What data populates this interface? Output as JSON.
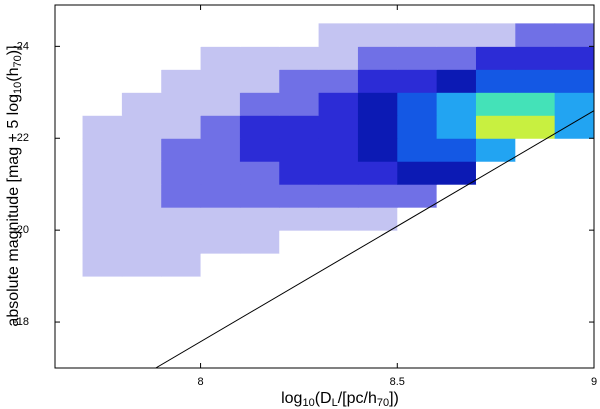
{
  "chart_data": {
    "type": "density",
    "x_label": [
      "log",
      "10",
      "(D",
      "L",
      "/[pc/h",
      "70",
      "])"
    ],
    "y_label": [
      "absolute magnitude [mag + 5 log",
      "10",
      "(h",
      "70",
      ")]"
    ],
    "xlim": [
      7.63,
      9.0
    ],
    "xticks": [
      8,
      8.5,
      9
    ],
    "ylim": [
      -17.0,
      -24.9
    ],
    "yticks": [
      -18,
      -20,
      -22,
      -24
    ],
    "x_bins": [
      7.7,
      7.8,
      7.9,
      8.0,
      8.1,
      8.2,
      8.3,
      8.4,
      8.5,
      8.6,
      8.7,
      8.8,
      8.9,
      9.0
    ],
    "y_bins": [
      -19.0,
      -19.5,
      -20.0,
      -20.5,
      -21.0,
      -21.5,
      -22.0,
      -22.5,
      -23.0,
      -23.5,
      -24.0,
      -24.5
    ],
    "counts": [
      [
        1,
        1,
        1,
        0,
        0,
        0,
        0,
        0,
        0,
        0,
        0,
        0,
        0
      ],
      [
        1,
        1,
        1,
        1,
        1,
        0,
        0,
        0,
        0,
        0,
        0,
        0,
        0
      ],
      [
        1,
        1,
        1,
        1,
        1,
        1,
        1,
        1,
        0,
        0,
        0,
        0,
        0
      ],
      [
        1,
        1,
        2,
        2,
        2,
        2,
        2,
        2,
        2,
        0,
        0,
        0,
        0
      ],
      [
        1,
        1,
        2,
        2,
        2,
        3,
        3,
        3,
        4,
        4,
        0,
        0,
        0
      ],
      [
        1,
        1,
        2,
        2,
        3,
        3,
        3,
        4,
        5,
        5,
        6,
        0,
        0
      ],
      [
        1,
        1,
        1,
        2,
        3,
        3,
        3,
        4,
        5,
        6,
        8,
        8,
        6
      ],
      [
        0,
        1,
        1,
        1,
        2,
        2,
        3,
        4,
        5,
        6,
        7,
        7,
        6
      ],
      [
        0,
        0,
        1,
        1,
        1,
        2,
        2,
        3,
        3,
        4,
        5,
        5,
        5
      ],
      [
        0,
        0,
        0,
        1,
        1,
        1,
        1,
        2,
        2,
        2,
        3,
        3,
        3
      ],
      [
        0,
        0,
        0,
        0,
        0,
        0,
        1,
        1,
        1,
        1,
        1,
        2,
        2
      ]
    ],
    "colormap": [
      "#ffffff",
      "#c4c4f2",
      "#7070e6",
      "#2c2cd6",
      "#0c1ab4",
      "#1458e4",
      "#22a4f2",
      "#44e2b8",
      "#c8f040"
    ],
    "line": {
      "x": [
        7.886,
        9.0
      ],
      "y": [
        -17.0,
        -22.6
      ],
      "color": "#000000"
    }
  }
}
